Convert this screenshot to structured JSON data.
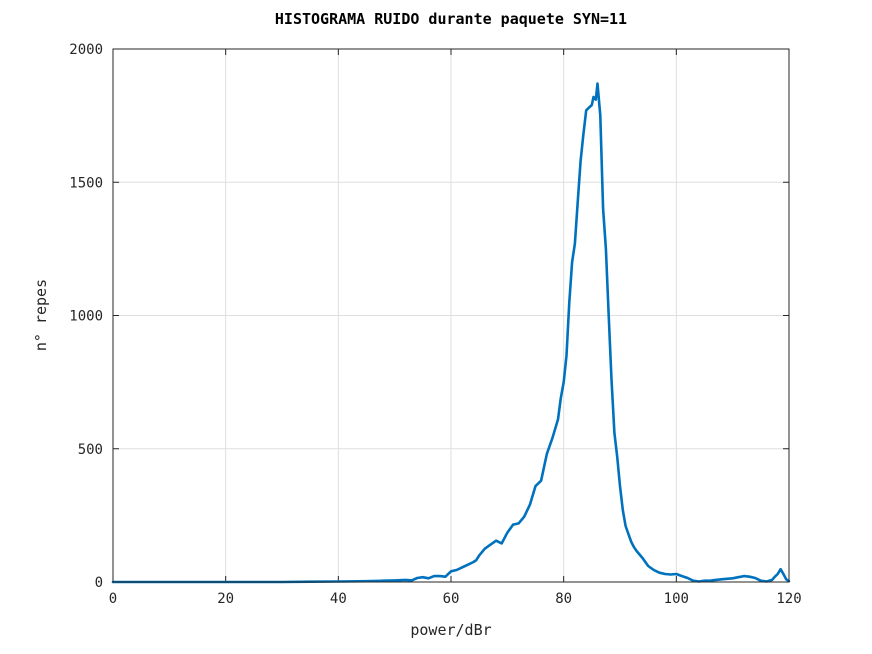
{
  "chart_data": {
    "type": "line",
    "title": "HISTOGRAMA RUIDO durante paquete SYN=11",
    "xlabel": "power/dBr",
    "ylabel": "n° repes",
    "xlim": [
      0,
      120
    ],
    "ylim": [
      0,
      2000
    ],
    "xticks": [
      0,
      20,
      40,
      60,
      80,
      100,
      120
    ],
    "yticks": [
      0,
      500,
      1000,
      1500,
      2000
    ],
    "xtick_labels": [
      "0",
      "20",
      "40",
      "60",
      "80",
      "100",
      "120"
    ],
    "ytick_labels": [
      "0",
      "500",
      "1000",
      "1500",
      "2000"
    ],
    "grid": true,
    "line_color": "#0072BD",
    "series": [
      {
        "x": [
          0,
          10,
          20,
          30,
          35,
          40,
          45,
          48,
          50,
          52,
          53,
          54,
          55,
          56,
          57,
          58,
          59,
          60,
          61,
          62,
          63,
          64,
          64.5,
          65,
          66,
          67,
          68,
          69,
          70,
          71,
          72,
          73,
          74,
          75,
          76,
          77,
          78,
          79,
          79.5,
          80,
          80.5,
          81,
          81.5,
          82,
          82.5,
          83,
          83.5,
          84,
          84.5,
          85,
          85.3,
          85.7,
          86,
          86.5,
          87,
          87.5,
          88,
          88.5,
          89,
          89.5,
          90,
          90.5,
          91,
          91.5,
          92,
          92.5,
          93,
          94,
          95,
          96,
          97,
          98,
          99,
          100,
          101,
          102,
          103,
          104,
          105,
          106,
          107,
          108,
          109,
          110,
          111,
          112,
          113,
          114,
          115,
          116,
          117,
          117.5,
          118,
          118.5,
          119,
          119.5,
          120
        ],
        "y": [
          0,
          0,
          0,
          0,
          1,
          2,
          3,
          5,
          6,
          8,
          6,
          15,
          18,
          14,
          22,
          22,
          20,
          40,
          45,
          55,
          65,
          75,
          82,
          100,
          125,
          140,
          155,
          145,
          185,
          215,
          220,
          245,
          290,
          360,
          380,
          480,
          540,
          610,
          690,
          750,
          850,
          1050,
          1200,
          1270,
          1430,
          1580,
          1680,
          1770,
          1780,
          1790,
          1820,
          1810,
          1870,
          1750,
          1400,
          1250,
          1000,
          760,
          560,
          470,
          360,
          270,
          210,
          180,
          150,
          130,
          115,
          90,
          60,
          45,
          35,
          30,
          28,
          30,
          22,
          15,
          5,
          2,
          5,
          5,
          8,
          10,
          12,
          14,
          18,
          22,
          20,
          15,
          5,
          2,
          8,
          20,
          30,
          48,
          30,
          10,
          3
        ]
      }
    ]
  }
}
